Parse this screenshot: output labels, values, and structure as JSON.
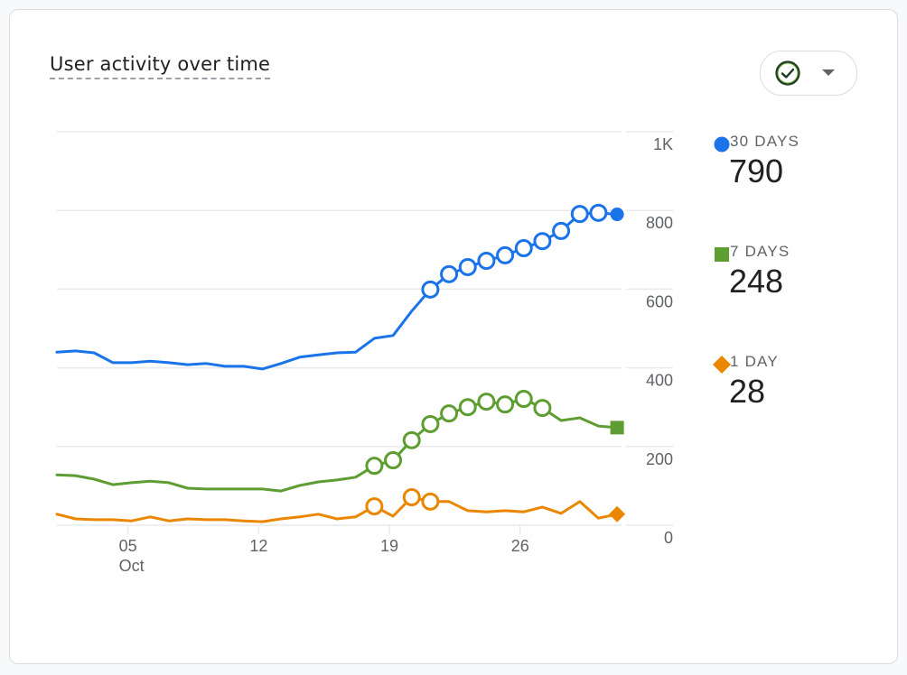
{
  "card": {
    "title": "User activity over time",
    "compare_button": {
      "icon": "check-circle-icon",
      "dropdown": "caret-down-icon"
    }
  },
  "colors": {
    "30_days": "#1a73e8",
    "7_days": "#5e9d32",
    "1_day": "#ea8600",
    "grid": "#e8eaed",
    "axis_text": "#5f6368"
  },
  "legend": [
    {
      "label": "30 DAYS",
      "value": "790",
      "marker": "circle"
    },
    {
      "label": "7 DAYS",
      "value": "248",
      "marker": "square"
    },
    {
      "label": "1 DAY",
      "value": "28",
      "marker": "diamond"
    }
  ],
  "chart_data": {
    "type": "line",
    "title": "User activity over time",
    "xlabel": "",
    "ylabel": "",
    "ylim": [
      0,
      1000
    ],
    "y_ticks": [
      0,
      200,
      400,
      600,
      800,
      1000
    ],
    "y_tick_labels": [
      "0",
      "200",
      "400",
      "600",
      "800",
      "1K"
    ],
    "y_axis_position": "right",
    "grid": true,
    "x_ticks": [
      {
        "day_index": 4,
        "label": "05",
        "sublabel": "Oct"
      },
      {
        "day_index": 11,
        "label": "12",
        "sublabel": ""
      },
      {
        "day_index": 18,
        "label": "19",
        "sublabel": ""
      },
      {
        "day_index": 25,
        "label": "26",
        "sublabel": ""
      }
    ],
    "x": [
      "Oct 1",
      "Oct 2",
      "Oct 3",
      "Oct 4",
      "Oct 5",
      "Oct 6",
      "Oct 7",
      "Oct 8",
      "Oct 9",
      "Oct 10",
      "Oct 11",
      "Oct 12",
      "Oct 13",
      "Oct 14",
      "Oct 15",
      "Oct 16",
      "Oct 17",
      "Oct 18",
      "Oct 19",
      "Oct 20",
      "Oct 21",
      "Oct 22",
      "Oct 23",
      "Oct 24",
      "Oct 25",
      "Oct 26",
      "Oct 27",
      "Oct 28",
      "Oct 29",
      "Oct 30",
      "Oct 31"
    ],
    "series": [
      {
        "name": "30 DAYS",
        "end_marker": "circle",
        "values": [
          440,
          443,
          438,
          413,
          413,
          417,
          413,
          408,
          411,
          404,
          404,
          397,
          411,
          427,
          433,
          438,
          440,
          475,
          482,
          544,
          599,
          638,
          656,
          672,
          686,
          704,
          722,
          748,
          791,
          794,
          790
        ],
        "hollow_marker_indices": [
          20,
          21,
          22,
          23,
          24,
          25,
          26,
          27,
          28,
          29
        ]
      },
      {
        "name": "7 DAYS",
        "end_marker": "square",
        "values": [
          128,
          126,
          117,
          103,
          108,
          112,
          108,
          94,
          92,
          92,
          92,
          92,
          87,
          101,
          110,
          115,
          122,
          151,
          165,
          216,
          257,
          284,
          300,
          314,
          307,
          321,
          298,
          266,
          273,
          252,
          248
        ],
        "hollow_marker_indices": [
          17,
          18,
          19,
          20,
          21,
          22,
          23,
          24,
          25,
          26
        ]
      },
      {
        "name": "1 DAY",
        "end_marker": "diamond",
        "values": [
          28,
          16,
          14,
          14,
          11,
          21,
          11,
          16,
          14,
          14,
          11,
          9,
          16,
          21,
          28,
          16,
          21,
          48,
          23,
          71,
          60,
          60,
          37,
          34,
          37,
          34,
          46,
          30,
          60,
          18,
          28
        ],
        "hollow_marker_indices": [
          17,
          19,
          20
        ]
      }
    ]
  }
}
